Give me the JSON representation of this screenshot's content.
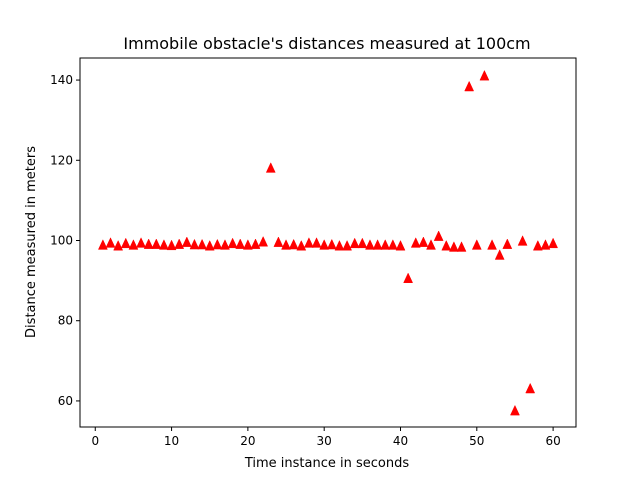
{
  "chart_data": {
    "type": "scatter",
    "title": "Immobile obstacle's distances measured at 100cm",
    "xlabel": "Time instance in seconds",
    "ylabel": "Distance measured in meters",
    "xlim": [
      -2,
      63
    ],
    "ylim": [
      53.5,
      145.5
    ],
    "xticks": [
      0,
      10,
      20,
      30,
      40,
      50,
      60
    ],
    "yticks": [
      60,
      80,
      100,
      120,
      140
    ],
    "marker": "triangle-up",
    "color": "#ff0000",
    "grid": false,
    "legend": "none",
    "series": [
      {
        "x": [
          1,
          2,
          3,
          4,
          5,
          6,
          7,
          8,
          9,
          10,
          11,
          12,
          13,
          14,
          15,
          16,
          17,
          18,
          19,
          20,
          21,
          22,
          23,
          24,
          25,
          26,
          27,
          28,
          29,
          30,
          31,
          32,
          33,
          34,
          35,
          36,
          37,
          38,
          39,
          40,
          41,
          42,
          43,
          44,
          45,
          46,
          47,
          48,
          49,
          50,
          51,
          52,
          53,
          54,
          55,
          56,
          57,
          58,
          59,
          60
        ],
        "y": [
          98.8,
          99.3,
          98.6,
          99.2,
          98.8,
          99.3,
          99.0,
          99.0,
          98.8,
          98.7,
          99.0,
          99.5,
          98.9,
          98.9,
          98.6,
          98.9,
          98.8,
          99.2,
          99.0,
          98.8,
          99.0,
          99.6,
          118.0,
          99.5,
          98.8,
          98.9,
          98.6,
          99.3,
          99.3,
          98.8,
          98.9,
          98.6,
          98.6,
          99.2,
          99.2,
          98.8,
          98.8,
          98.8,
          98.8,
          98.6,
          90.5,
          99.3,
          99.5,
          98.8,
          101.0,
          98.6,
          98.3,
          98.3,
          138.3,
          98.8,
          141.0,
          98.8,
          96.3,
          99.0,
          57.5,
          99.8,
          63.0,
          98.6,
          98.8,
          99.2
        ]
      }
    ]
  }
}
